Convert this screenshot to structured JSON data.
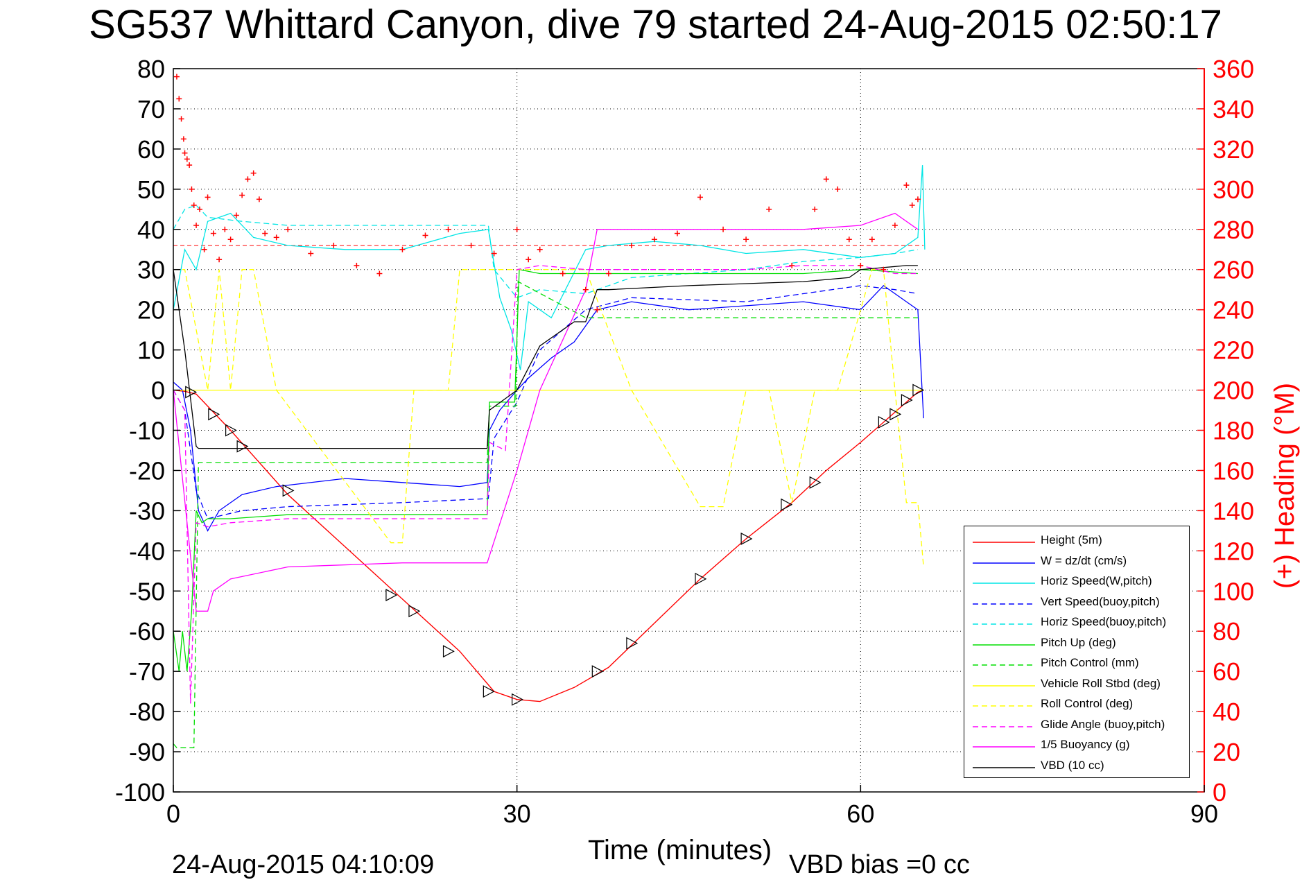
{
  "header": {
    "title": "SG537 Whittard Canyon, dive 79 started 24-Aug-2015 02:50:17"
  },
  "footer": {
    "timestamp": "24-Aug-2015 04:10:09",
    "vbd_bias": "VBD bias =0 cc"
  },
  "chart_data": {
    "type": "line",
    "xlabel": "Time (minutes)",
    "ylabel": "",
    "y2label": "(+) Heading (°M)",
    "xlim": [
      0,
      90
    ],
    "ylim": [
      -100,
      80
    ],
    "y2lim": [
      0,
      360
    ],
    "xticks": [
      "0",
      "30",
      "60",
      "90"
    ],
    "yticks": [
      "80",
      "70",
      "60",
      "50",
      "40",
      "30",
      "20",
      "10",
      "0",
      "-10",
      "-20",
      "-30",
      "-40",
      "-50",
      "-60",
      "-70",
      "-80",
      "-90",
      "-100"
    ],
    "y2ticks": [
      "360",
      "340",
      "320",
      "300",
      "280",
      "260",
      "240",
      "220",
      "200",
      "180",
      "160",
      "140",
      "120",
      "100",
      "80",
      "60",
      "40",
      "20",
      "0"
    ],
    "grid": true,
    "legend_position": "bottom-right",
    "colors": {
      "height": "#ff0000",
      "w": "#0000ff",
      "horiz_speed": "#00e5e5",
      "pitch": "#00dd00",
      "roll": "#ffff00",
      "glide": "#ff00ff",
      "buoyancy": "#ff00ff",
      "vbd": "#000000",
      "heading": "#ff0000"
    },
    "series": [
      {
        "name": "Height (5m)",
        "color": "#ff0000",
        "style": "solid",
        "x": [
          0,
          1,
          2,
          5,
          10,
          15,
          20,
          25,
          28,
          30,
          32,
          35,
          38,
          42,
          46,
          50,
          54,
          57,
          60,
          62,
          64,
          65,
          65.5
        ],
        "y": [
          0,
          -0.3,
          -1,
          -10,
          -26,
          -39,
          -52,
          -65,
          -75,
          -77,
          -77.5,
          -74,
          -69,
          -58,
          -47,
          -37,
          -28,
          -20,
          -13,
          -8,
          -3,
          -0.5,
          0
        ]
      },
      {
        "name": "W = dz/dt (cm/s)",
        "color": "#0000ff",
        "style": "solid",
        "x": [
          0,
          0.8,
          1.5,
          2.2,
          3,
          4,
          6,
          9,
          15,
          20,
          25,
          27.4,
          27.6,
          28.5,
          30,
          31,
          33,
          35,
          37,
          40,
          45,
          50,
          55,
          60,
          62,
          64,
          65,
          65.5
        ],
        "y": [
          2,
          0,
          -10,
          -30,
          -35,
          -30,
          -26,
          -24,
          -22,
          -23,
          -24,
          -23,
          -10,
          -5,
          0,
          3,
          8,
          12,
          20,
          22,
          20,
          21,
          22,
          20,
          26,
          22,
          20,
          -7
        ]
      },
      {
        "name": "Horiz Speed(W,pitch)",
        "color": "#00e5e5",
        "style": "solid",
        "x": [
          0,
          1,
          2,
          3,
          5,
          7,
          10,
          15,
          20,
          25,
          27.5,
          28.5,
          29.5,
          30.3,
          31,
          33,
          36,
          38,
          42,
          46,
          50,
          55,
          60,
          63,
          64.5,
          65,
          65.4,
          65.6
        ],
        "y": [
          20,
          35,
          30,
          42,
          44,
          38,
          36,
          35,
          35,
          39,
          40,
          23,
          15,
          5,
          22,
          18,
          35,
          36,
          37,
          36,
          34,
          35,
          33,
          34,
          37,
          38,
          56,
          35
        ]
      },
      {
        "name": "Vert Speed(buoy,pitch)",
        "color": "#0000ff",
        "style": "dashed",
        "x": [
          0,
          1,
          2,
          3,
          6,
          10,
          20,
          27.5,
          28,
          30,
          32,
          36,
          40,
          50,
          55,
          60,
          63,
          65
        ],
        "y": [
          0,
          -5,
          -25,
          -32,
          -30,
          -29,
          -28,
          -27,
          -12,
          -3,
          10,
          20,
          23,
          22,
          24,
          26,
          25,
          24
        ]
      },
      {
        "name": "Horiz Speed(buoy,pitch)",
        "color": "#00e5e5",
        "style": "dashed",
        "x": [
          0,
          1,
          2,
          3,
          6,
          10,
          20,
          27.5,
          28,
          30,
          32,
          36,
          40,
          50,
          55,
          60,
          63,
          65
        ],
        "y": [
          40,
          45,
          46,
          43,
          42,
          41,
          41,
          41,
          30,
          23,
          25,
          24,
          28,
          30,
          32,
          33,
          34,
          35
        ]
      },
      {
        "name": "Pitch Up (deg)",
        "color": "#00dd00",
        "style": "solid",
        "x": [
          0,
          0.5,
          0.8,
          1.2,
          1.6,
          2,
          2.5,
          3,
          5,
          10,
          20,
          27.4,
          27.6,
          29.8,
          30.2,
          32,
          40,
          50,
          55,
          60,
          65
        ],
        "y": [
          -60,
          -70,
          -60,
          -70,
          -55,
          -30,
          -33,
          -32,
          -32,
          -31,
          -31,
          -31,
          -3,
          -3,
          30,
          29,
          29,
          29,
          29,
          30,
          29
        ]
      },
      {
        "name": "Pitch Control (mm)",
        "color": "#00dd00",
        "style": "dashed",
        "x": [
          0,
          0.3,
          1.8,
          2.2,
          20,
          27.4,
          27.6,
          29.9,
          30.1,
          36,
          37,
          65
        ],
        "y": [
          -88,
          -89,
          -89,
          -18,
          -18,
          -18,
          -4,
          -4,
          27,
          18,
          18,
          18
        ]
      },
      {
        "name": "Vehicle Roll Stbd (deg)",
        "color": "#ffff00",
        "style": "solid",
        "x": [
          0,
          65.5
        ],
        "y": [
          0,
          0
        ]
      },
      {
        "name": "Roll Control (deg)",
        "color": "#ffff00",
        "style": "dashed",
        "x": [
          0,
          1,
          3,
          4,
          5,
          6,
          7,
          9,
          19,
          20,
          21,
          24,
          25,
          27,
          31,
          34,
          36,
          40,
          46,
          48,
          50,
          52,
          54,
          56,
          58,
          61,
          62,
          63,
          64,
          65,
          65.5
        ],
        "y": [
          30,
          30,
          0,
          30,
          0,
          30,
          30,
          0,
          -38,
          -38,
          0,
          0,
          30,
          30,
          30,
          30,
          30,
          0,
          -29,
          -29,
          0,
          0,
          -28,
          0,
          0,
          30,
          30,
          0,
          -28,
          -28,
          -44
        ]
      },
      {
        "name": "Glide Angle (buoy,pitch)",
        "color": "#ff00ff",
        "style": "dashed",
        "x": [
          0,
          1,
          1.5,
          2,
          3,
          5,
          10,
          20,
          27.4,
          27.6,
          29,
          30,
          32,
          36,
          40,
          50,
          55,
          60,
          63,
          65
        ],
        "y": [
          0,
          -5,
          -78,
          -33,
          -34,
          -33,
          -32,
          -32,
          -32,
          -13,
          -15,
          30,
          31,
          30,
          30,
          30,
          31,
          31,
          29,
          29
        ]
      },
      {
        "name": "1/5 Buoyancy (g)",
        "color": "#ff00ff",
        "style": "solid",
        "x": [
          0,
          2,
          2.3,
          3,
          3.5,
          5,
          10,
          20,
          27.4,
          30,
          32,
          36,
          37,
          45,
          55,
          60,
          63,
          65
        ],
        "y": [
          0,
          -55,
          -55,
          -55,
          -50,
          -47,
          -44,
          -43,
          -43,
          -20,
          0,
          25,
          40,
          40,
          40,
          41,
          44,
          40
        ]
      },
      {
        "name": "VBD (10 cc)",
        "color": "#000000",
        "style": "solid",
        "x": [
          0,
          1,
          2,
          2.2,
          27.4,
          27.6,
          30,
          32,
          35,
          36,
          37,
          38,
          45,
          55,
          59,
          60,
          64,
          65
        ],
        "y": [
          30,
          10,
          -14,
          -14.5,
          -14.5,
          -5,
          0,
          11,
          17,
          17,
          25,
          25,
          26,
          27,
          28,
          30,
          31,
          31
        ]
      }
    ],
    "heading_series": {
      "name": "(+) Heading (°M)",
      "color": "#ff0000",
      "marker": "+",
      "axis": "right",
      "x": [
        0.3,
        0.5,
        0.7,
        0.9,
        1.0,
        1.2,
        1.4,
        1.6,
        1.8,
        2.0,
        2.3,
        2.7,
        3.0,
        3.5,
        4.0,
        4.5,
        5.0,
        5.5,
        6.0,
        6.5,
        7.0,
        7.5,
        8.0,
        9.0,
        10,
        12,
        14,
        16,
        18,
        20,
        22,
        24,
        26,
        28,
        30,
        31,
        32,
        34,
        36,
        37,
        38,
        40,
        42,
        44,
        46,
        48,
        50,
        52,
        54,
        56,
        57,
        58,
        59,
        60,
        61,
        62,
        63,
        64,
        64.5,
        65
      ],
      "y": [
        356,
        345,
        335,
        325,
        318,
        315,
        312,
        300,
        292,
        282,
        290,
        270,
        296,
        278,
        265,
        280,
        275,
        287,
        297,
        305,
        308,
        295,
        278,
        276,
        280,
        268,
        272,
        262,
        258,
        270,
        277,
        280,
        272,
        268,
        280,
        265,
        270,
        258,
        250,
        240,
        258,
        272,
        275,
        278,
        296,
        280,
        275,
        290,
        262,
        290,
        305,
        300,
        275,
        262,
        275,
        260,
        282,
        302,
        292,
        295
      ]
    },
    "reference_lines": [
      {
        "axis": "right",
        "value": 272,
        "color": "#ff0000",
        "style": "dashed"
      }
    ],
    "markers": {
      "symbol": "triangle",
      "color": "#000000",
      "x": [
        1.5,
        3.5,
        5,
        6,
        10,
        19,
        21,
        24,
        27.5,
        30,
        37,
        40,
        46,
        50,
        53.5,
        56,
        62,
        63,
        64,
        65
      ],
      "y": [
        -0.5,
        -6,
        -10,
        -14,
        -25,
        -51,
        -55,
        -65,
        -75,
        -77,
        -70,
        -63,
        -47,
        -37,
        -28.5,
        -23,
        -8,
        -6,
        -2.5,
        0
      ]
    }
  },
  "legend": {
    "items": [
      {
        "label": "Height (5m)",
        "color": "#ff0000",
        "style": "solid"
      },
      {
        "label": "W = dz/dt (cm/s)",
        "color": "#0000ff",
        "style": "solid"
      },
      {
        "label": "Horiz Speed(W,pitch)",
        "color": "#00e5e5",
        "style": "solid"
      },
      {
        "label": "Vert Speed(buoy,pitch)",
        "color": "#0000ff",
        "style": "dashed"
      },
      {
        "label": "Horiz Speed(buoy,pitch)",
        "color": "#00e5e5",
        "style": "dashed"
      },
      {
        "label": "Pitch Up (deg)",
        "color": "#00dd00",
        "style": "solid"
      },
      {
        "label": "Pitch Control (mm)",
        "color": "#00dd00",
        "style": "dashed"
      },
      {
        "label": "Vehicle Roll Stbd (deg)",
        "color": "#ffff00",
        "style": "solid"
      },
      {
        "label": "Roll Control (deg)",
        "color": "#ffff00",
        "style": "dashed"
      },
      {
        "label": "Glide Angle (buoy,pitch)",
        "color": "#ff00ff",
        "style": "dashed"
      },
      {
        "label": "1/5 Buoyancy (g)",
        "color": "#ff00ff",
        "style": "solid"
      },
      {
        "label": "VBD (10 cc)",
        "color": "#000000",
        "style": "solid"
      }
    ]
  }
}
